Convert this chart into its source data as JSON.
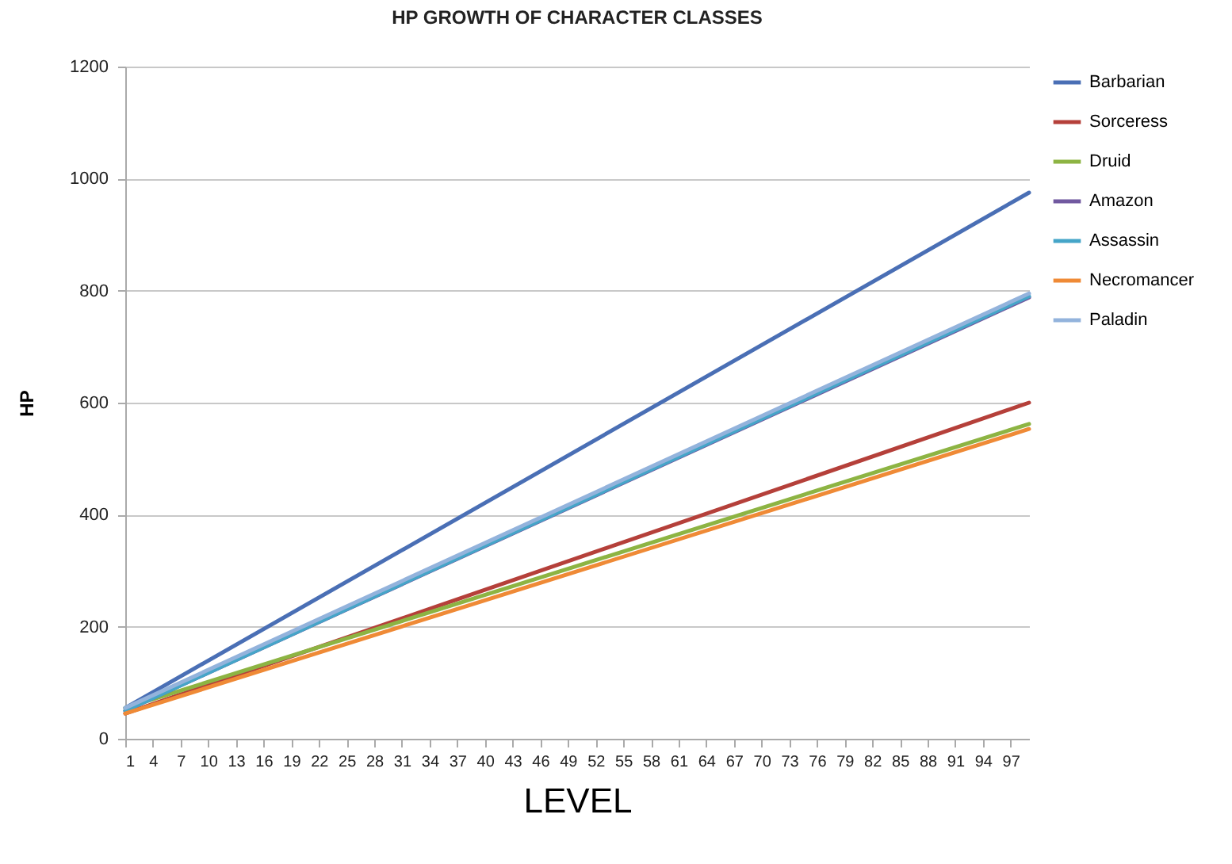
{
  "chart_data": {
    "type": "line",
    "title": "HP GROWTH OF CHARACTER CLASSES",
    "xlabel": "LEVEL",
    "ylabel": "HP",
    "x": [
      1,
      99
    ],
    "series": [
      {
        "name": "Barbarian",
        "color": "#4a6fb5",
        "values": [
          55,
          975
        ]
      },
      {
        "name": "Sorceress",
        "color": "#b5403a",
        "values": [
          45,
          600
        ]
      },
      {
        "name": "Druid",
        "color": "#8db443",
        "values": [
          55,
          562
        ]
      },
      {
        "name": "Amazon",
        "color": "#7159a0",
        "values": [
          50,
          788
        ]
      },
      {
        "name": "Assassin",
        "color": "#45a5c8",
        "values": [
          50,
          790
        ]
      },
      {
        "name": "Necromancer",
        "color": "#ef8a36",
        "values": [
          45,
          553
        ]
      },
      {
        "name": "Paladin",
        "color": "#93b3dc",
        "values": [
          55,
          795
        ]
      }
    ],
    "xlim": [
      1,
      99
    ],
    "xticks": [
      1,
      4,
      7,
      10,
      13,
      16,
      19,
      22,
      25,
      28,
      31,
      34,
      37,
      40,
      43,
      46,
      49,
      52,
      55,
      58,
      61,
      64,
      67,
      70,
      73,
      76,
      79,
      82,
      85,
      88,
      91,
      94,
      97
    ],
    "ylim": [
      0,
      1200
    ],
    "yticks": [
      0,
      200,
      400,
      600,
      800,
      1000,
      1200
    ],
    "grid": "y",
    "legend": "right",
    "marker": "none",
    "line_style": "solid"
  }
}
